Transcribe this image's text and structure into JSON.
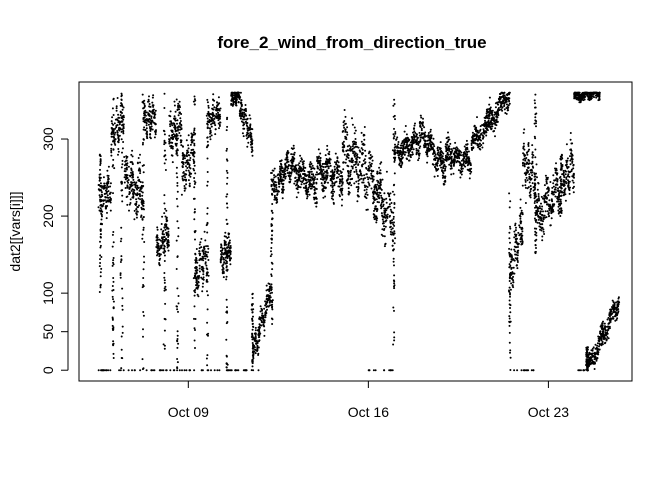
{
  "chart_data": {
    "type": "scatter",
    "title": "fore_2_wind_from_direction_true",
    "xlabel": "",
    "ylabel": "dat2[[vars[i]]]",
    "x_tick_labels": [
      "Oct 09",
      "Oct 16",
      "Oct 23"
    ],
    "x_tick_dates": [
      "2000-10-09",
      "2000-10-16",
      "2000-10-23"
    ],
    "y_ticks": [
      0,
      50,
      100,
      200,
      300
    ],
    "xlim": [
      "2000-10-04T18:00",
      "2000-10-26T06:00"
    ],
    "ylim": [
      -14,
      374
    ],
    "grid": false,
    "legend": "none",
    "marker_color": "#000000",
    "segments": [
      {
        "x0": "2000-10-05T12:00",
        "x1": "2000-10-06T00:00",
        "y0": 220,
        "y1": 235,
        "spread": 35
      },
      {
        "x0": "2000-10-06T00:00",
        "x1": "2000-10-06T12:00",
        "y0": 300,
        "y1": 330,
        "spread": 40
      },
      {
        "x0": "2000-10-06T12:00",
        "x1": "2000-10-07T06:00",
        "y0": 250,
        "y1": 230,
        "spread": 45
      },
      {
        "x0": "2000-10-07T06:00",
        "x1": "2000-10-07T18:00",
        "y0": 320,
        "y1": 330,
        "spread": 30
      },
      {
        "x0": "2000-10-07T18:00",
        "x1": "2000-10-08T06:00",
        "y0": 150,
        "y1": 180,
        "spread": 30
      },
      {
        "x0": "2000-10-08T06:00",
        "x1": "2000-10-08T18:00",
        "y0": 300,
        "y1": 320,
        "spread": 40
      },
      {
        "x0": "2000-10-08T18:00",
        "x1": "2000-10-09T06:00",
        "y0": 250,
        "y1": 290,
        "spread": 40
      },
      {
        "x0": "2000-10-09T06:00",
        "x1": "2000-10-09T18:00",
        "y0": 120,
        "y1": 150,
        "spread": 40
      },
      {
        "x0": "2000-10-09T18:00",
        "x1": "2000-10-10T06:00",
        "y0": 320,
        "y1": 340,
        "spread": 30
      },
      {
        "x0": "2000-10-10T06:00",
        "x1": "2000-10-10T16:00",
        "y0": 140,
        "y1": 160,
        "spread": 30
      },
      {
        "x0": "2000-10-10T16:00",
        "x1": "2000-10-11T00:00",
        "y0": 350,
        "y1": 360,
        "spread": 15
      },
      {
        "x0": "2000-10-11T00:00",
        "x1": "2000-10-11T12:00",
        "y0": 340,
        "y1": 300,
        "spread": 25
      },
      {
        "x0": "2000-10-11T12:00",
        "x1": "2000-10-12T06:00",
        "y0": 20,
        "y1": 110,
        "spread": 25
      },
      {
        "x0": "2000-10-12T06:00",
        "x1": "2000-10-13T00:00",
        "y0": 230,
        "y1": 270,
        "spread": 30
      },
      {
        "x0": "2000-10-13T00:00",
        "x1": "2000-10-14T00:00",
        "y0": 260,
        "y1": 240,
        "spread": 30
      },
      {
        "x0": "2000-10-14T00:00",
        "x1": "2000-10-15T00:00",
        "y0": 260,
        "y1": 250,
        "spread": 35
      },
      {
        "x0": "2000-10-15T00:00",
        "x1": "2000-10-16T00:00",
        "y0": 280,
        "y1": 260,
        "spread": 60
      },
      {
        "x0": "2000-10-16T00:00",
        "x1": "2000-10-17T00:00",
        "y0": 250,
        "y1": 190,
        "spread": 50
      },
      {
        "x0": "2000-10-17T00:00",
        "x1": "2000-10-18T00:00",
        "y0": 280,
        "y1": 300,
        "spread": 25
      },
      {
        "x0": "2000-10-18T00:00",
        "x1": "2000-10-19T00:00",
        "y0": 310,
        "y1": 260,
        "spread": 25
      },
      {
        "x0": "2000-10-19T00:00",
        "x1": "2000-10-20T00:00",
        "y0": 280,
        "y1": 270,
        "spread": 25
      },
      {
        "x0": "2000-10-20T00:00",
        "x1": "2000-10-21T12:00",
        "y0": 290,
        "y1": 360,
        "spread": 25
      },
      {
        "x0": "2000-10-21T12:00",
        "x1": "2000-10-22T00:00",
        "y0": 120,
        "y1": 200,
        "spread": 40
      },
      {
        "x0": "2000-10-22T00:00",
        "x1": "2000-10-22T12:00",
        "y0": 270,
        "y1": 250,
        "spread": 45
      },
      {
        "x0": "2000-10-22T12:00",
        "x1": "2000-10-23T12:00",
        "y0": 200,
        "y1": 240,
        "spread": 40
      },
      {
        "x0": "2000-10-23T12:00",
        "x1": "2000-10-24T00:00",
        "y0": 240,
        "y1": 270,
        "spread": 40
      },
      {
        "x0": "2000-10-24T00:00",
        "x1": "2000-10-25T00:00",
        "y0": 355,
        "y1": 360,
        "spread": 10
      },
      {
        "x0": "2000-10-24T12:00",
        "x1": "2000-10-25T18:00",
        "y0": 0,
        "y1": 90,
        "spread": 20
      }
    ],
    "vertical_streaks": [
      {
        "x": "2000-10-05T14:00",
        "ymin": 100,
        "ymax": 280
      },
      {
        "x": "2000-10-06T02:00",
        "ymin": 0,
        "ymax": 360
      },
      {
        "x": "2000-10-06T10:00",
        "ymin": 0,
        "ymax": 360
      },
      {
        "x": "2000-10-07T06:00",
        "ymin": 0,
        "ymax": 360
      },
      {
        "x": "2000-10-08T02:00",
        "ymin": 0,
        "ymax": 360
      },
      {
        "x": "2000-10-08T14:00",
        "ymin": 0,
        "ymax": 360
      },
      {
        "x": "2000-10-09T06:00",
        "ymin": 0,
        "ymax": 360
      },
      {
        "x": "2000-10-09T18:00",
        "ymin": 0,
        "ymax": 360
      },
      {
        "x": "2000-10-10T12:00",
        "ymin": 0,
        "ymax": 360
      },
      {
        "x": "2000-10-11T12:00",
        "ymin": 0,
        "ymax": 110
      },
      {
        "x": "2000-10-12T06:00",
        "ymin": 60,
        "ymax": 260
      },
      {
        "x": "2000-10-17T00:00",
        "ymin": 0,
        "ymax": 360
      },
      {
        "x": "2000-10-21T12:00",
        "ymin": 0,
        "ymax": 230
      },
      {
        "x": "2000-10-22T12:00",
        "ymin": 150,
        "ymax": 360
      },
      {
        "x": "2000-10-23T12:00",
        "ymin": 200,
        "ymax": 280
      },
      {
        "x": "2000-10-24T12:00",
        "ymin": 0,
        "ymax": 30
      }
    ],
    "floor_points": [
      {
        "x0": "2000-10-05T12:00",
        "x1": "2000-10-11T18:00",
        "y": 0
      },
      {
        "x0": "2000-10-16T00:00",
        "x1": "2000-10-17T00:00",
        "y": 0
      },
      {
        "x0": "2000-10-21T12:00",
        "x1": "2000-10-22T12:00",
        "y": 0
      },
      {
        "x0": "2000-10-24T00:00",
        "x1": "2000-10-24T12:00",
        "y": 0
      }
    ]
  }
}
